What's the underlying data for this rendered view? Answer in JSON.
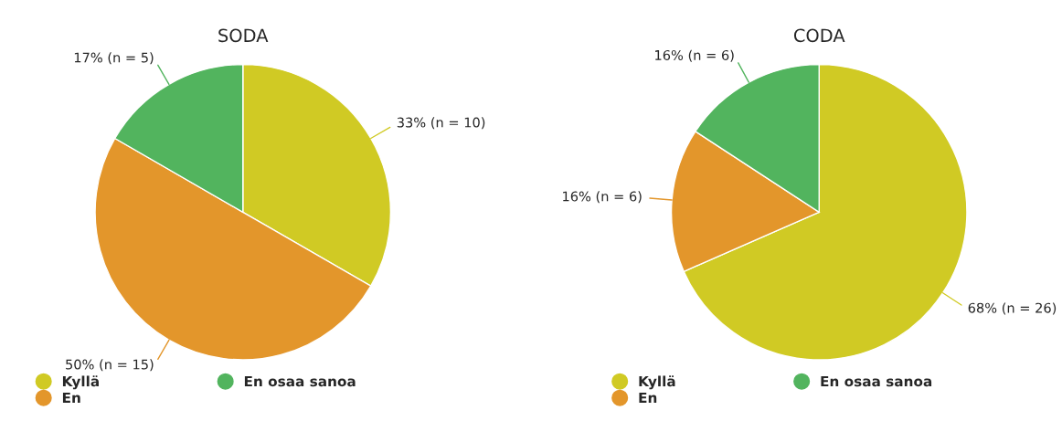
{
  "chart_data": [
    {
      "type": "pie",
      "title": "SODA",
      "categories": [
        "Kyllä",
        "En",
        "En osaa sanoa"
      ],
      "values": [
        10,
        15,
        5
      ],
      "colors": [
        "#d0ca24",
        "#e3962b",
        "#52b45e"
      ],
      "value_labels": [
        "33% (n = 10)",
        "50% (n = 15)",
        "17% (n = 5)"
      ],
      "legend": "bottom"
    },
    {
      "type": "pie",
      "title": "CODA",
      "categories": [
        "Kyllä",
        "En",
        "En osaa sanoa"
      ],
      "values": [
        26,
        6,
        6
      ],
      "colors": [
        "#d0ca24",
        "#e3962b",
        "#52b45e"
      ],
      "value_labels": [
        "68% (n = 26)",
        "16% (n = 6)",
        "16% (n = 6)"
      ],
      "legend": "bottom"
    }
  ]
}
